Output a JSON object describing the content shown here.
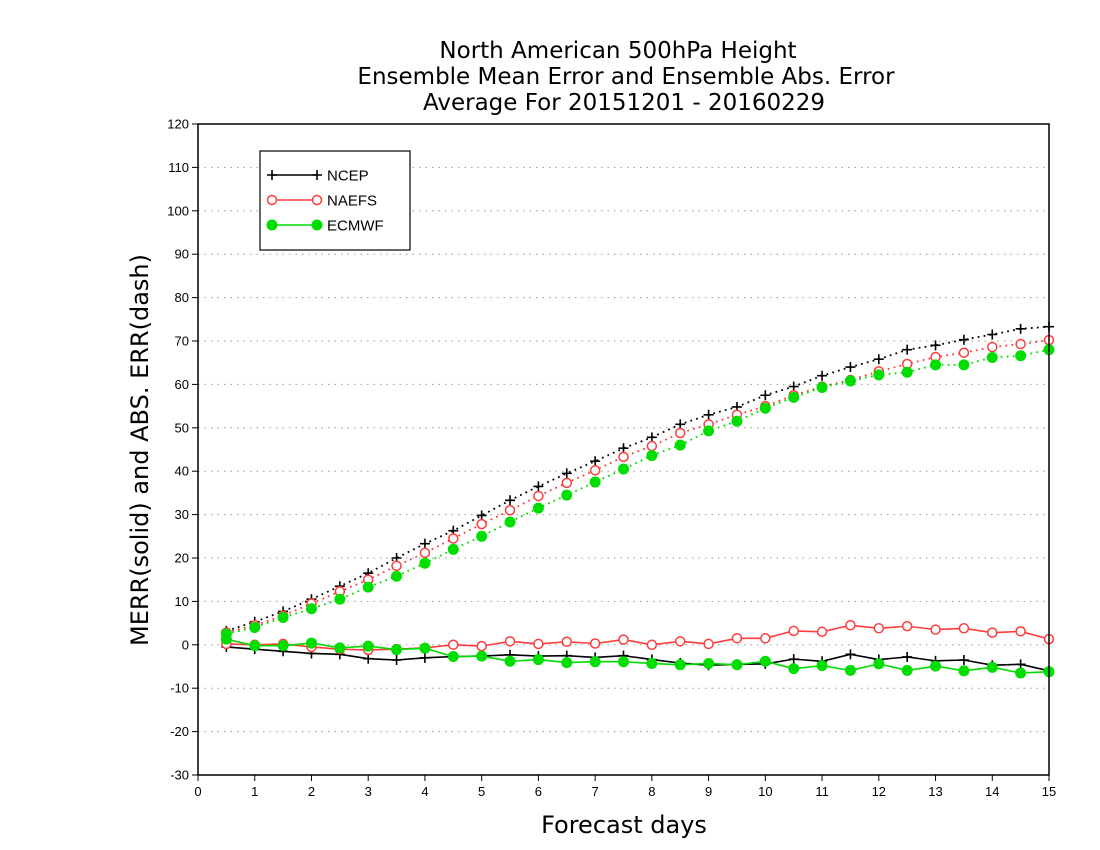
{
  "chart_data": {
    "type": "line",
    "title_lines": [
      "North American 500hPa Height",
      "Ensemble Mean Error and Ensemble Abs. Error",
      "Average For 20151201 - 20160229"
    ],
    "xlabel": "Forecast days",
    "ylabel": "MERR(solid) and ABS. ERR(dash)",
    "xlim": [
      0,
      15
    ],
    "ylim": [
      -30,
      120
    ],
    "xticks": [
      "0",
      "1",
      "2",
      "3",
      "4",
      "5",
      "6",
      "7",
      "8",
      "9",
      "10",
      "11",
      "12",
      "13",
      "14",
      "15"
    ],
    "yticks": [
      "-30",
      "-20",
      "-10",
      "0",
      "10",
      "20",
      "30",
      "40",
      "50",
      "60",
      "70",
      "80",
      "90",
      "100",
      "110",
      "120"
    ],
    "grid": "horizontal dotted",
    "legend_position": "top-left",
    "x": [
      0.5,
      1,
      1.5,
      2,
      2.5,
      3,
      3.5,
      4,
      4.5,
      5,
      5.5,
      6,
      6.5,
      7,
      7.5,
      8,
      8.5,
      9,
      9.5,
      10,
      10.5,
      11,
      11.5,
      12,
      12.5,
      13,
      13.5,
      14,
      14.5,
      15
    ],
    "series": [
      {
        "name": "NCEP",
        "color": "#000000",
        "marker": "plus",
        "merr": [
          -0.5,
          -1,
          -1.5,
          -2,
          -2.2,
          -3.2,
          -3.5,
          -3,
          -2.7,
          -2.6,
          -2.3,
          -2.6,
          -2.5,
          -2.9,
          -2.5,
          -3.4,
          -4.2,
          -4.7,
          -4.5,
          -4.4,
          -3.3,
          -3.8,
          -2.2,
          -3.4,
          -2.8,
          -3.7,
          -3.5,
          -4.7,
          -4.5,
          -6.0
        ],
        "abs_err": [
          3.2,
          5.3,
          7.7,
          10.5,
          13.5,
          16.5,
          20,
          23.3,
          26.3,
          29.8,
          33.3,
          36.5,
          39.5,
          42.3,
          45.3,
          47.8,
          50.8,
          53,
          54.8,
          57.5,
          59.5,
          62,
          64,
          65.8,
          68,
          69,
          70.3,
          71.5,
          72.8,
          73.3
        ]
      },
      {
        "name": "NAEFS",
        "color": "#ff3c3c",
        "marker": "open-circle",
        "merr": [
          0.2,
          0,
          0.2,
          -0.5,
          -1,
          -1.2,
          -1,
          -0.7,
          0,
          -0.3,
          0.8,
          0.2,
          0.7,
          0.3,
          1.2,
          0,
          0.8,
          0.2,
          1.5,
          1.5,
          3.2,
          3,
          4.5,
          3.8,
          4.3,
          3.5,
          3.8,
          2.8,
          3.1,
          1.3
        ],
        "abs_err": [
          2.8,
          4.5,
          6.7,
          9.5,
          12.3,
          15,
          18.2,
          21.2,
          24.5,
          27.8,
          31,
          34.3,
          37.3,
          40.2,
          43.3,
          45.8,
          48.8,
          50.8,
          53,
          55,
          57.5,
          59.5,
          61,
          63,
          64.7,
          66.3,
          67.3,
          68.6,
          69.3,
          70.2
        ]
      },
      {
        "name": "ECMWF",
        "color": "#00dd00",
        "marker": "filled-circle",
        "merr": [
          1.3,
          -0.2,
          -0.2,
          0.4,
          -0.7,
          -0.3,
          -1.1,
          -0.8,
          -2.7,
          -2.6,
          -3.8,
          -3.4,
          -4.1,
          -3.9,
          -3.9,
          -4.3,
          -4.6,
          -4.3,
          -4.6,
          -3.8,
          -5.5,
          -4.8,
          -5.9,
          -4.4,
          -5.9,
          -4.9,
          -6,
          -5.2,
          -6.5,
          -6.2
        ],
        "abs_err": [
          2.5,
          4,
          6.3,
          8.3,
          10.5,
          13.3,
          15.8,
          18.8,
          22,
          25,
          28.3,
          31.5,
          34.5,
          37.5,
          40.5,
          43.6,
          46,
          49.3,
          51.5,
          54.5,
          57,
          59.3,
          60.8,
          62.2,
          62.8,
          64.5,
          64.5,
          66.2,
          66.6,
          68
        ]
      }
    ]
  }
}
